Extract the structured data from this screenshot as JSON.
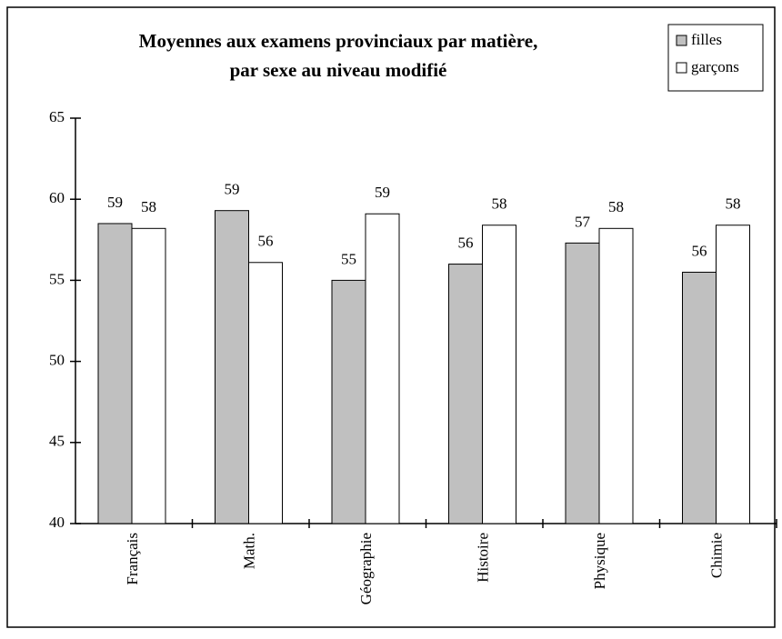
{
  "chart_data": {
    "type": "bar",
    "title": [
      "Moyennes aux examens provinciaux par matière,",
      "par sexe au niveau modifié"
    ],
    "categories": [
      "Français",
      "Math.",
      "Géographie",
      "Histoire",
      "Physique",
      "Chimie"
    ],
    "series": [
      {
        "name": "filles",
        "color": "#c0c0c0",
        "values": [
          58.5,
          59.3,
          55.0,
          56.0,
          57.3,
          55.5
        ],
        "value_labels": [
          "59",
          "59",
          "55",
          "56",
          "57",
          "56"
        ]
      },
      {
        "name": "garçons",
        "color": "#ffffff",
        "values": [
          58.2,
          56.1,
          59.1,
          58.4,
          58.2,
          58.4
        ],
        "value_labels": [
          "58",
          "56",
          "59",
          "58",
          "58",
          "58"
        ]
      }
    ],
    "ylim": [
      40,
      65
    ],
    "yticks": [
      40,
      45,
      50,
      55,
      60,
      65
    ],
    "grid": false,
    "legend": "top-right"
  }
}
